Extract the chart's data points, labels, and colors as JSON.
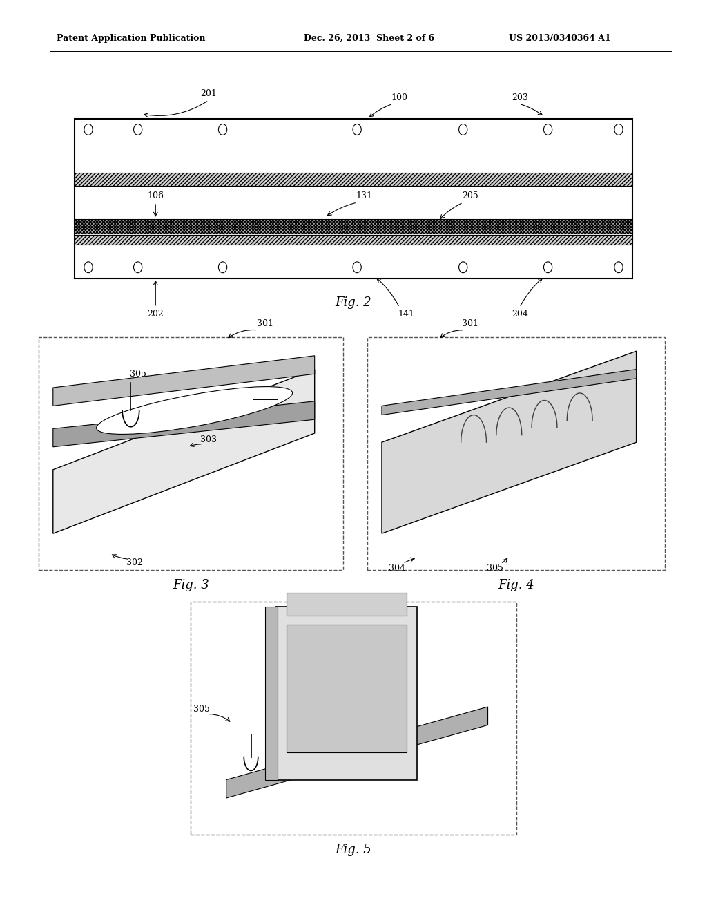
{
  "header_left": "Patent Application Publication",
  "header_mid": "Dec. 26, 2013  Sheet 2 of 6",
  "header_right": "US 2013/0340364 A1",
  "bg_color": "#ffffff",
  "line_color": "#000000",
  "fig2_label": "Fig. 2",
  "fig3_label": "Fig. 3",
  "fig4_label": "Fig. 4",
  "fig5_label": "Fig. 5"
}
